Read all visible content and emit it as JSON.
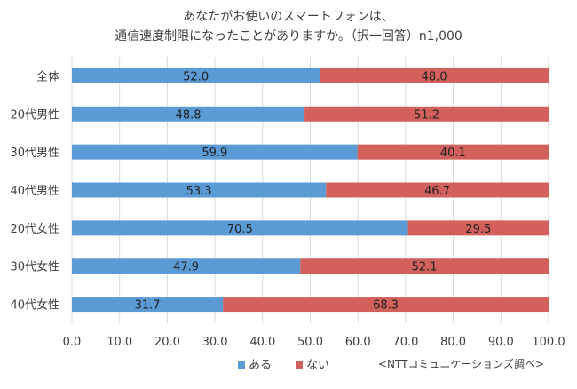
{
  "chart_data": {
    "type": "bar",
    "orientation": "horizontal",
    "stacked": true,
    "title_lines": [
      "あなたがお使いのスマートフォンは、",
      "通信速度制限になったことがありますか。（択一回答）n1,000"
    ],
    "categories": [
      "全体",
      "20代男性",
      "30代男性",
      "40代男性",
      "20代女性",
      "30代女性",
      "40代女性"
    ],
    "series": [
      {
        "name": "ある",
        "color": "#5B9BD5",
        "values": [
          52.0,
          48.8,
          59.9,
          53.3,
          70.5,
          47.9,
          31.7
        ]
      },
      {
        "name": "ない",
        "color": "#D2615B",
        "values": [
          48.0,
          51.2,
          40.1,
          46.7,
          29.5,
          52.1,
          68.3
        ]
      }
    ],
    "xlim": [
      0,
      100
    ],
    "xticks": [
      0,
      10,
      20,
      30,
      40,
      50,
      60,
      70,
      80,
      90,
      100
    ],
    "tick_decimals": 1,
    "grid": true,
    "legend_position": "bottom",
    "source_note": "<NTTコミュニケーションズ調べ>"
  }
}
